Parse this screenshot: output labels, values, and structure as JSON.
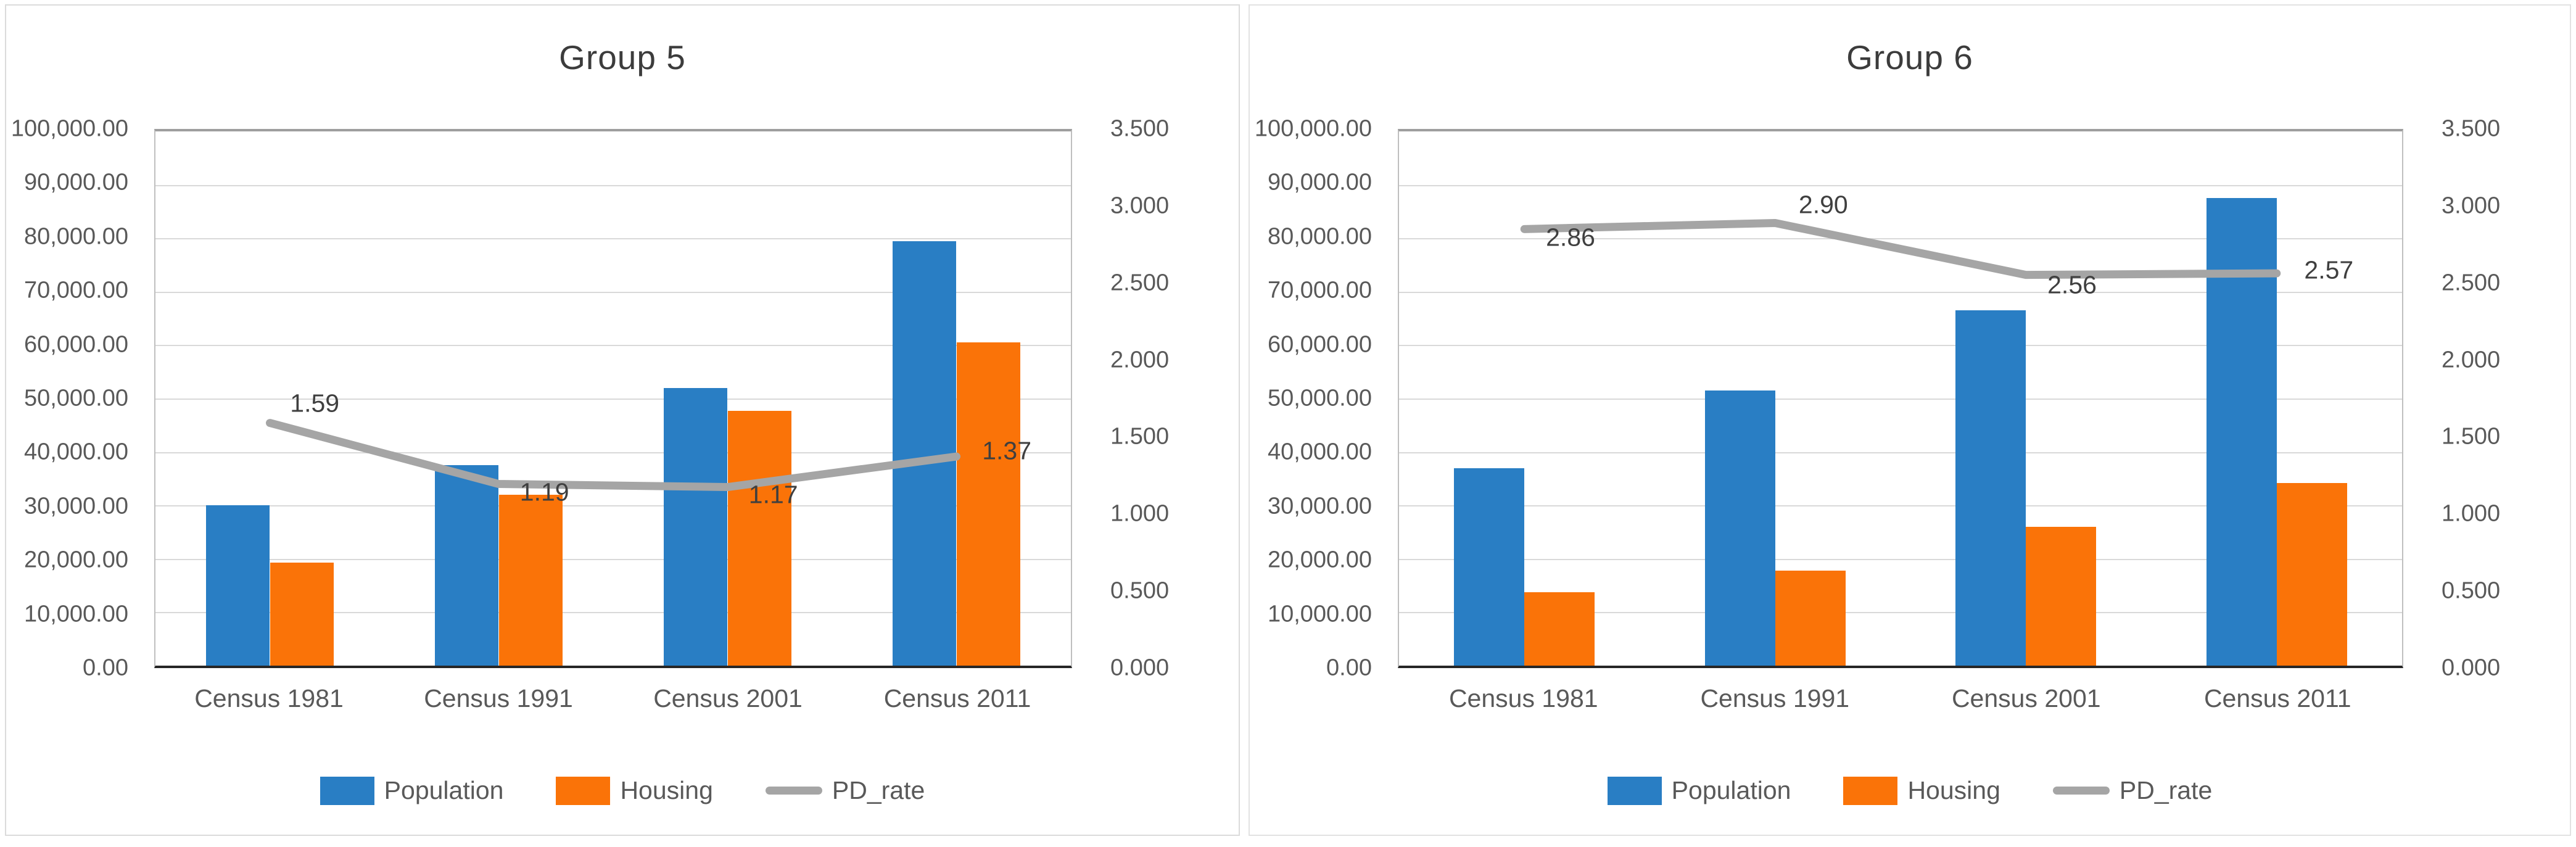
{
  "page": {
    "background": "#FFFFFF"
  },
  "chart_data": [
    {
      "type": "combo-bar-line",
      "title": "Group 5",
      "categories": [
        "Census 1981",
        "Census 1991",
        "Census 2001",
        "Census 2011"
      ],
      "series": [
        {
          "name": "Population",
          "type": "bar",
          "color": "#297EC4",
          "axis": "left",
          "values": [
            30000,
            37500,
            52000,
            79500
          ]
        },
        {
          "name": "Housing",
          "type": "bar",
          "color": "#FA7308",
          "axis": "left",
          "values": [
            19300,
            32000,
            47700,
            60500
          ]
        },
        {
          "name": "PD_rate",
          "type": "line",
          "color": "#A5A5A5",
          "axis": "right",
          "values": [
            1.59,
            1.19,
            1.17,
            1.37
          ],
          "point_labels": [
            "1.59",
            "1.19",
            "1.17",
            "1.37"
          ]
        }
      ],
      "left_axis": {
        "min": 0,
        "max": 100000,
        "tick_labels": [
          "100,000.00",
          "90,000.00",
          "80,000.00",
          "70,000.00",
          "60,000.00",
          "50,000.00",
          "40,000.00",
          "30,000.00",
          "20,000.00",
          "10,000.00",
          "0.00"
        ]
      },
      "right_axis": {
        "min": 0,
        "max": 3.5,
        "tick_labels": [
          "3.500",
          "3.000",
          "2.500",
          "2.000",
          "1.500",
          "1.000",
          "0.500",
          "0.000"
        ]
      },
      "legend": [
        "Population",
        "Housing",
        "PD_rate"
      ],
      "legend_position": "bottom",
      "grid": true
    },
    {
      "type": "combo-bar-line",
      "title": "Group 6",
      "categories": [
        "Census 1981",
        "Census 1991",
        "Census 2001",
        "Census 2011"
      ],
      "series": [
        {
          "name": "Population",
          "type": "bar",
          "color": "#297EC4",
          "axis": "left",
          "values": [
            37000,
            51500,
            66500,
            87500
          ]
        },
        {
          "name": "Housing",
          "type": "bar",
          "color": "#FA7308",
          "axis": "left",
          "values": [
            13800,
            17800,
            26000,
            34200
          ]
        },
        {
          "name": "PD_rate",
          "type": "line",
          "color": "#A5A5A5",
          "axis": "right",
          "values": [
            2.86,
            2.9,
            2.56,
            2.57
          ],
          "point_labels": [
            "2.86",
            "2.90",
            "2.56",
            "2.57"
          ]
        }
      ],
      "left_axis": {
        "min": 0,
        "max": 100000,
        "tick_labels": [
          "100,000.00",
          "90,000.00",
          "80,000.00",
          "70,000.00",
          "60,000.00",
          "50,000.00",
          "40,000.00",
          "30,000.00",
          "20,000.00",
          "10,000.00",
          "0.00"
        ]
      },
      "right_axis": {
        "min": 0,
        "max": 3.5,
        "tick_labels": [
          "3.500",
          "3.000",
          "2.500",
          "2.000",
          "1.500",
          "1.000",
          "0.500",
          "0.000"
        ]
      },
      "legend": [
        "Population",
        "Housing",
        "PD_rate"
      ],
      "legend_position": "bottom",
      "grid": true
    }
  ]
}
